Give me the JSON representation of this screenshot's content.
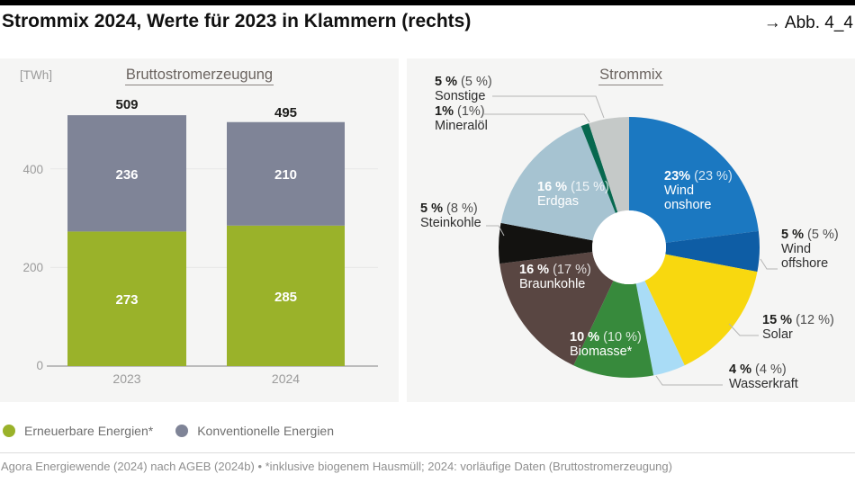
{
  "header": {
    "title": "Strommix 2024, Werte für 2023 in Klammern (rechts)",
    "figure_ref": "→ Abb. 4_4"
  },
  "chart_data": [
    {
      "type": "bar",
      "title": "Bruttostromerzeugung",
      "unit_label": "[TWh]",
      "unit": "TWh",
      "categories": [
        "2023",
        "2024"
      ],
      "series": [
        {
          "name": "Erneuerbare Energien*",
          "color": "#9ab22a",
          "values": [
            273,
            285
          ]
        },
        {
          "name": "Konventionelle Energien",
          "color": "#7f8497",
          "values": [
            236,
            210
          ]
        }
      ],
      "totals": [
        509,
        495
      ],
      "ylim": [
        0,
        520
      ],
      "y_ticks": [
        400,
        200,
        0
      ],
      "grid": "horizontal"
    },
    {
      "type": "pie",
      "title": "Strommix",
      "note": "values for 2023 in parentheses",
      "slices": [
        {
          "name": "Wind onshore",
          "pct": 23,
          "pct_2023": 23,
          "value_label": "23%",
          "prev_label": "(23 %)",
          "color": "#1b78c1"
        },
        {
          "name": "Wind offshore",
          "pct": 5,
          "pct_2023": 5,
          "value_label": "5 %",
          "prev_label": "(5 %)",
          "color": "#0e5da5"
        },
        {
          "name": "Solar",
          "pct": 15,
          "pct_2023": 12,
          "value_label": "15 %",
          "prev_label": "(12 %)",
          "color": "#f8d80f"
        },
        {
          "name": "Wasserkraft",
          "pct": 4,
          "pct_2023": 4,
          "value_label": "4 %",
          "prev_label": "(4 %)",
          "color": "#a9dcf6"
        },
        {
          "name": "Biomasse*",
          "pct": 10,
          "pct_2023": 10,
          "value_label": "10 %",
          "prev_label": "(10 %)",
          "color": "#378a3c"
        },
        {
          "name": "Braunkohle",
          "pct": 16,
          "pct_2023": 17,
          "value_label": "16 %",
          "prev_label": "(17 %)",
          "color": "#594642"
        },
        {
          "name": "Steinkohle",
          "pct": 5,
          "pct_2023": 8,
          "value_label": "5 %",
          "prev_label": "(8 %)",
          "color": "#131210"
        },
        {
          "name": "Erdgas",
          "pct": 16,
          "pct_2023": 15,
          "value_label": "16 %",
          "prev_label": "(15 %)",
          "color": "#a6c3d1"
        },
        {
          "name": "Mineralöl",
          "pct": 1,
          "pct_2023": 1,
          "value_label": "1%",
          "prev_label": "(1%)",
          "color": "#07684f"
        },
        {
          "name": "Sonstige",
          "pct": 5,
          "pct_2023": 5,
          "value_label": "5 %",
          "prev_label": "(5 %)",
          "color": "#c5c9c8"
        }
      ]
    }
  ],
  "footer": {
    "source_note": "Agora Energiewende (2024) nach AGEB (2024b) • *inklusive biogenem Hausmüll; 2024: vorläufige Daten (Bruttostromerzeugung)"
  }
}
